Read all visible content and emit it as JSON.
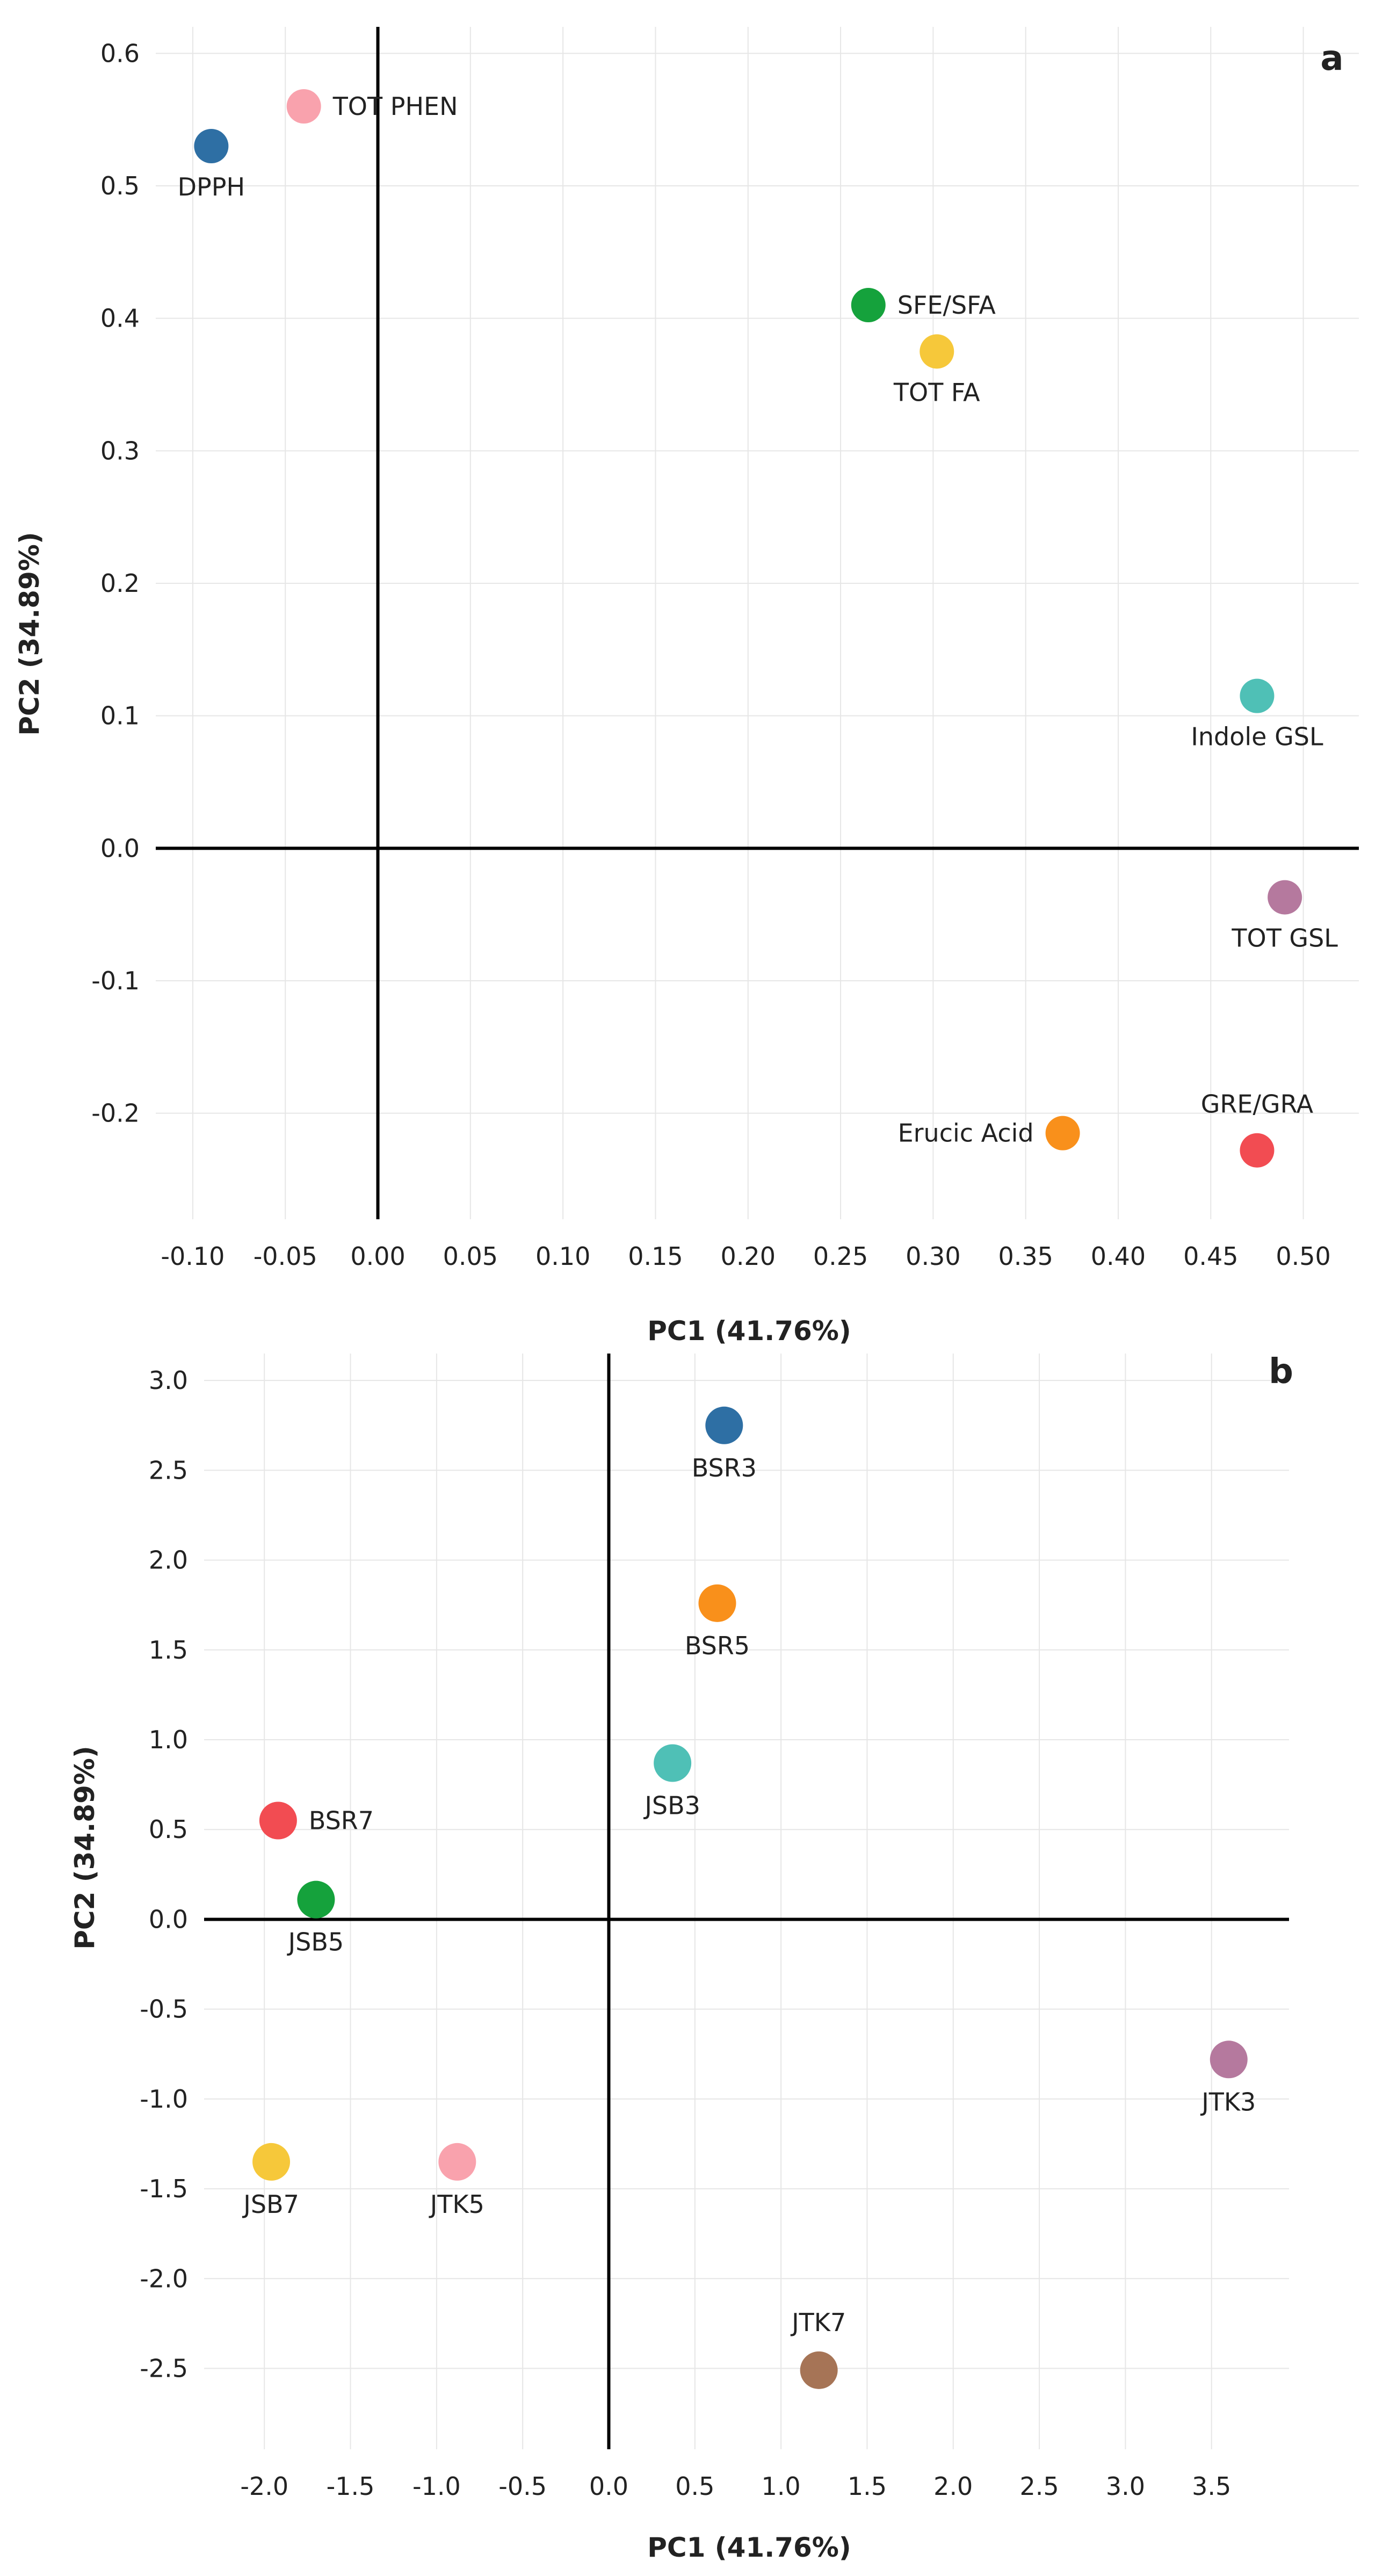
{
  "chart_data": [
    {
      "type": "scatter",
      "panel_label": "a",
      "xlabel": "PC1 (41.76%)",
      "ylabel": "PC2 (34.89%)",
      "xlim": [
        -0.12,
        0.53
      ],
      "ylim": [
        -0.28,
        0.62
      ],
      "xticks": [
        -0.1,
        -0.05,
        0.0,
        0.05,
        0.1,
        0.15,
        0.2,
        0.25,
        0.3,
        0.35,
        0.4,
        0.45,
        0.5
      ],
      "xtick_labels": [
        "-0.10",
        "-0.05",
        "0.00",
        "0.05",
        "0.10",
        "0.15",
        "0.20",
        "0.25",
        "0.30",
        "0.35",
        "0.40",
        "0.45",
        "0.50"
      ],
      "yticks": [
        -0.2,
        -0.1,
        0.0,
        0.1,
        0.2,
        0.3,
        0.4,
        0.5,
        0.6
      ],
      "ytick_labels": [
        "-0.2",
        "-0.1",
        "0.0",
        "0.1",
        "0.2",
        "0.3",
        "0.4",
        "0.5",
        "0.6"
      ],
      "grid": true,
      "points": [
        {
          "label": "DPPH",
          "x": -0.09,
          "y": 0.53,
          "color": "#2e6fa4",
          "label_pos": "below"
        },
        {
          "label": "TOT PHEN",
          "x": -0.04,
          "y": 0.56,
          "color": "#f9a2ad",
          "label_pos": "right"
        },
        {
          "label": "SFE/SFA",
          "x": 0.265,
          "y": 0.41,
          "color": "#15a23c",
          "label_pos": "right"
        },
        {
          "label": "TOT FA",
          "x": 0.302,
          "y": 0.375,
          "color": "#f6c83a",
          "label_pos": "below"
        },
        {
          "label": "Indole GSL",
          "x": 0.475,
          "y": 0.115,
          "color": "#4fc0b6",
          "label_pos": "below"
        },
        {
          "label": "TOT GSL",
          "x": 0.49,
          "y": -0.037,
          "color": "#b5799e",
          "label_pos": "below"
        },
        {
          "label": "Erucic Acid",
          "x": 0.37,
          "y": -0.215,
          "color": "#f9901b",
          "label_pos": "left"
        },
        {
          "label": "GRE/GRA",
          "x": 0.475,
          "y": -0.228,
          "color": "#f24c52",
          "label_pos": "above"
        }
      ]
    },
    {
      "type": "scatter",
      "panel_label": "b",
      "xlabel": "PC1 (41.76%)",
      "ylabel": "PC2 (34.89%)",
      "xlim": [
        -2.35,
        3.95
      ],
      "ylim": [
        -2.95,
        3.15
      ],
      "xticks": [
        -2.0,
        -1.5,
        -1.0,
        -0.5,
        0.0,
        0.5,
        1.0,
        1.5,
        2.0,
        2.5,
        3.0,
        3.5
      ],
      "xtick_labels": [
        "-2.0",
        "-1.5",
        "-1.0",
        "-0.5",
        "0.0",
        "0.5",
        "1.0",
        "1.5",
        "2.0",
        "2.5",
        "3.0",
        "3.5"
      ],
      "yticks": [
        -2.5,
        -2.0,
        -1.5,
        -1.0,
        -0.5,
        0.0,
        0.5,
        1.0,
        1.5,
        2.0,
        2.5,
        3.0
      ],
      "ytick_labels": [
        "-2.5",
        "-2.0",
        "-1.5",
        "-1.0",
        "-0.5",
        "0.0",
        "0.5",
        "1.0",
        "1.5",
        "2.0",
        "2.5",
        "3.0"
      ],
      "grid": true,
      "points": [
        {
          "label": "BSR3",
          "x": 0.67,
          "y": 2.75,
          "color": "#2e6fa4",
          "label_pos": "below"
        },
        {
          "label": "BSR5",
          "x": 0.63,
          "y": 1.76,
          "color": "#f9901b",
          "label_pos": "below"
        },
        {
          "label": "JSB3",
          "x": 0.37,
          "y": 0.87,
          "color": "#4fc0b6",
          "label_pos": "below"
        },
        {
          "label": "BSR7",
          "x": -1.92,
          "y": 0.55,
          "color": "#f24c52",
          "label_pos": "right"
        },
        {
          "label": "JSB5",
          "x": -1.7,
          "y": 0.11,
          "color": "#15a23c",
          "label_pos": "below"
        },
        {
          "label": "JTK3",
          "x": 3.6,
          "y": -0.78,
          "color": "#b5799e",
          "label_pos": "below"
        },
        {
          "label": "JSB7",
          "x": -1.96,
          "y": -1.35,
          "color": "#f6c83a",
          "label_pos": "below"
        },
        {
          "label": "JTK5",
          "x": -0.88,
          "y": -1.35,
          "color": "#f9a2ad",
          "label_pos": "below"
        },
        {
          "label": "JTK7",
          "x": 1.22,
          "y": -2.51,
          "color": "#a67456",
          "label_pos": "above"
        }
      ]
    }
  ]
}
